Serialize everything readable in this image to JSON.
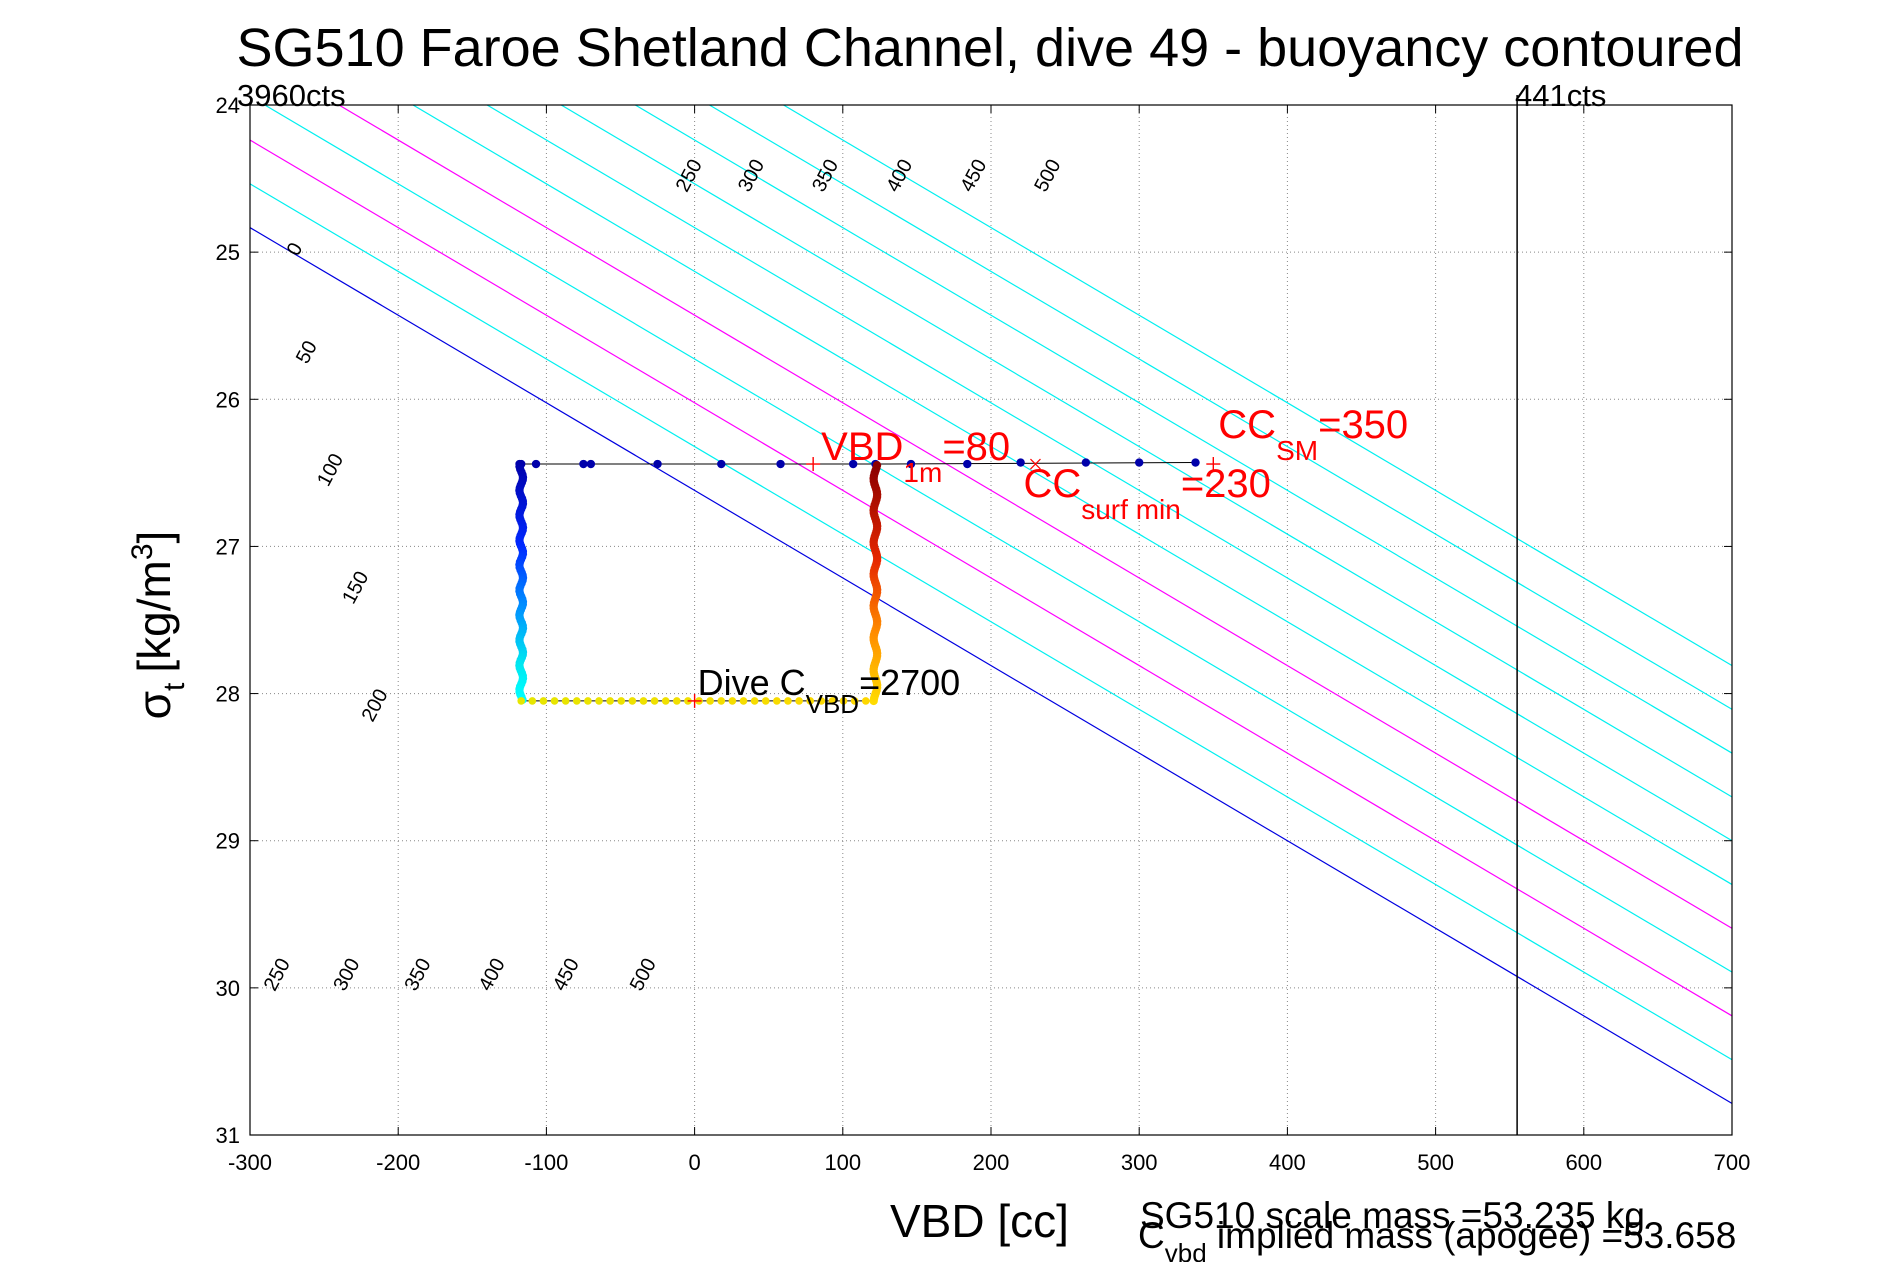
{
  "chart_data": {
    "type": "scatter",
    "title": "SG510 Faroe Shetland Channel, dive 49 - buoyancy contoured",
    "xlabel": "VBD [cc]",
    "ylabel": {
      "symbol": "σ",
      "sub": "t",
      "unit_pre": "[kg/m",
      "unit_sup": "3",
      "unit_post": "]"
    },
    "xlim": [
      -300,
      700
    ],
    "ylim": [
      24,
      31
    ],
    "y_reversed": true,
    "grid": "dotted",
    "xticks": [
      -300,
      -200,
      -100,
      0,
      100,
      200,
      300,
      400,
      500,
      600,
      700
    ],
    "yticks": [
      24,
      25,
      26,
      27,
      28,
      29,
      30,
      31
    ],
    "colors": {
      "contour": "#00f0f0",
      "contour_zero": "#0000e0",
      "contour_magenta": "#ff00ff",
      "annotation_red": "#ff0000",
      "vertical_line": "#000000",
      "track": "#000000"
    },
    "contour_slope_cc_per_sigma": 168,
    "contours": [
      {
        "value": 0,
        "x_at_25": -272,
        "color_key": "contour_zero"
      },
      {
        "value": 50,
        "x_at_25": -222,
        "color_key": "contour"
      },
      {
        "value": 100,
        "x_at_25": -172,
        "color_key": "contour_magenta"
      },
      {
        "value": 150,
        "x_at_25": -122,
        "color_key": "contour"
      },
      {
        "value": 200,
        "x_at_25": -72,
        "color_key": "contour_magenta"
      },
      {
        "value": 250,
        "x_at_25": -22,
        "color_key": "contour"
      },
      {
        "value": 300,
        "x_at_25": 28,
        "color_key": "contour"
      },
      {
        "value": 350,
        "x_at_25": 78,
        "color_key": "contour"
      },
      {
        "value": 400,
        "x_at_25": 128,
        "color_key": "contour"
      },
      {
        "value": 450,
        "x_at_25": 178,
        "color_key": "contour"
      },
      {
        "value": 500,
        "x_at_25": 228,
        "color_key": "contour"
      }
    ],
    "contour_labels": [
      {
        "text": "0",
        "x": -266,
        "y": 25.0
      },
      {
        "text": "50",
        "x": -258,
        "y": 25.7
      },
      {
        "text": "100",
        "x": -242,
        "y": 26.5
      },
      {
        "text": "150",
        "x": -225,
        "y": 27.3
      },
      {
        "text": "200",
        "x": -212,
        "y": 28.1
      },
      {
        "text": "250",
        "x": 0,
        "y": 24.5
      },
      {
        "text": "300",
        "x": 42,
        "y": 24.5
      },
      {
        "text": "350",
        "x": 92,
        "y": 24.5
      },
      {
        "text": "400",
        "x": 142,
        "y": 24.5
      },
      {
        "text": "450",
        "x": 192,
        "y": 24.5
      },
      {
        "text": "500",
        "x": 242,
        "y": 24.5
      },
      {
        "text": "250",
        "x": -278,
        "y": 29.93
      },
      {
        "text": "300",
        "x": -231,
        "y": 29.93
      },
      {
        "text": "350",
        "x": -183,
        "y": 29.93
      },
      {
        "text": "400",
        "x": -133,
        "y": 29.93
      },
      {
        "text": "450",
        "x": -83,
        "y": 29.93
      },
      {
        "text": "500",
        "x": -31,
        "y": 29.93
      }
    ],
    "vertical_line": {
      "x": 555,
      "label": "441cts"
    },
    "left_label": "3960cts",
    "track": [
      [
        -117,
        26.44
      ],
      [
        -117,
        28.05
      ],
      [
        122,
        28.05
      ],
      [
        122,
        26.44
      ],
      [
        -117,
        26.44
      ]
    ],
    "track_top_extension": [
      [
        122,
        26.44
      ],
      [
        338,
        26.43
      ]
    ],
    "series": [
      {
        "segment": "top",
        "points": [
          [
            -117,
            26.44
          ],
          [
            -107,
            26.44
          ],
          [
            -75,
            26.44
          ],
          [
            -70,
            26.44
          ],
          [
            -25,
            26.44
          ],
          [
            18,
            26.44
          ],
          [
            58,
            26.44
          ],
          [
            107,
            26.44
          ],
          [
            122,
            26.44
          ],
          [
            146,
            26.44
          ],
          [
            184,
            26.44
          ],
          [
            220,
            26.43
          ],
          [
            264,
            26.43
          ],
          [
            300,
            26.43
          ],
          [
            338,
            26.43
          ]
        ],
        "color": "#0000aa"
      }
    ],
    "annotations": {
      "vbd1m": {
        "main": "VBD",
        "sub": "1m",
        "value": "=80",
        "x": 80,
        "y": 26.44
      },
      "ccsm": {
        "main": "CC",
        "sub": "SM",
        "value": "=350",
        "x": 350,
        "y": 26.44
      },
      "ccsurf": {
        "main": "CC",
        "sub": "surf min",
        "value": "=230",
        "x": 230,
        "y": 26.44
      },
      "dive_cvbd": {
        "main": "Dive C",
        "sub": "VBD",
        "value": "=2700",
        "x": 0,
        "y": 28.05
      }
    },
    "footer": {
      "scale_mass": "SG510 scale mass =53.235 kg",
      "implied_main": "C",
      "implied_sub": "vbd",
      "implied_rest": " implied mass (apogee) =53.658"
    }
  }
}
